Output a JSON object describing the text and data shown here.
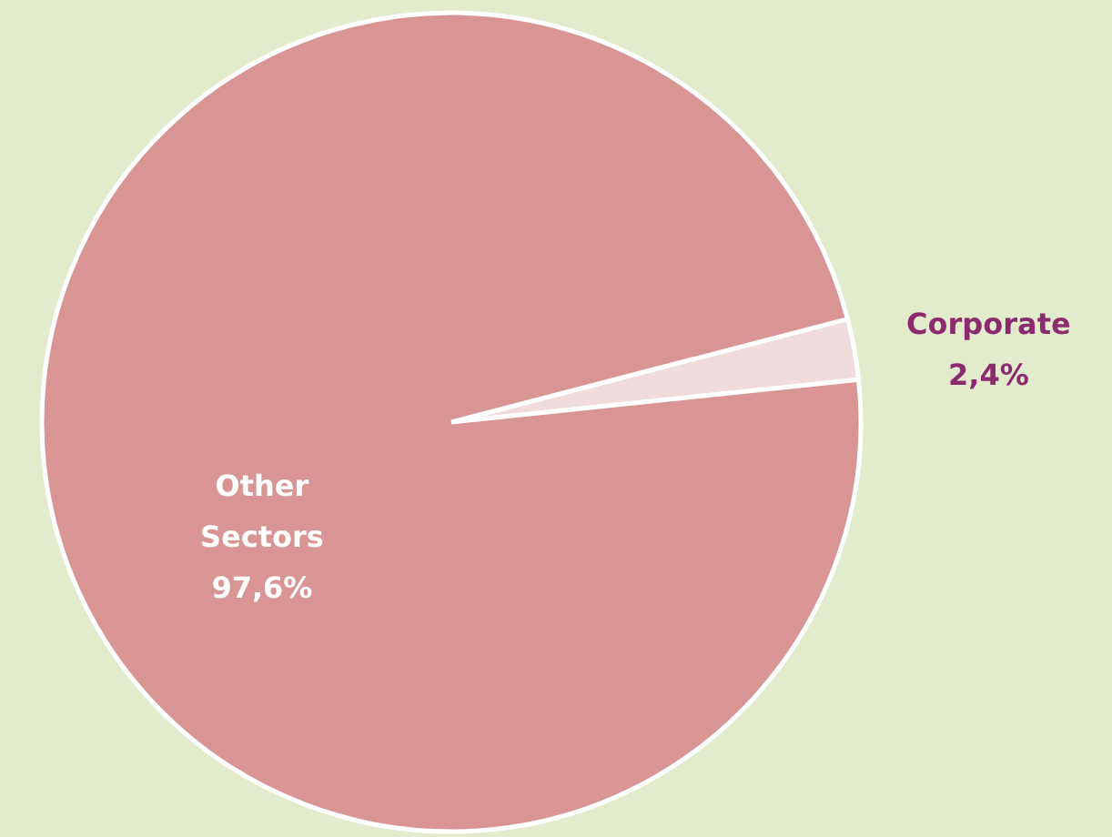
{
  "chart_data": {
    "type": "pie",
    "categories": [
      "Corporate",
      "Other Sectors"
    ],
    "values": [
      2.4,
      97.6
    ],
    "colors": [
      "#f0dcdc",
      "#d99494"
    ],
    "value_labels": [
      "2,4%",
      "97,6%"
    ]
  }
}
